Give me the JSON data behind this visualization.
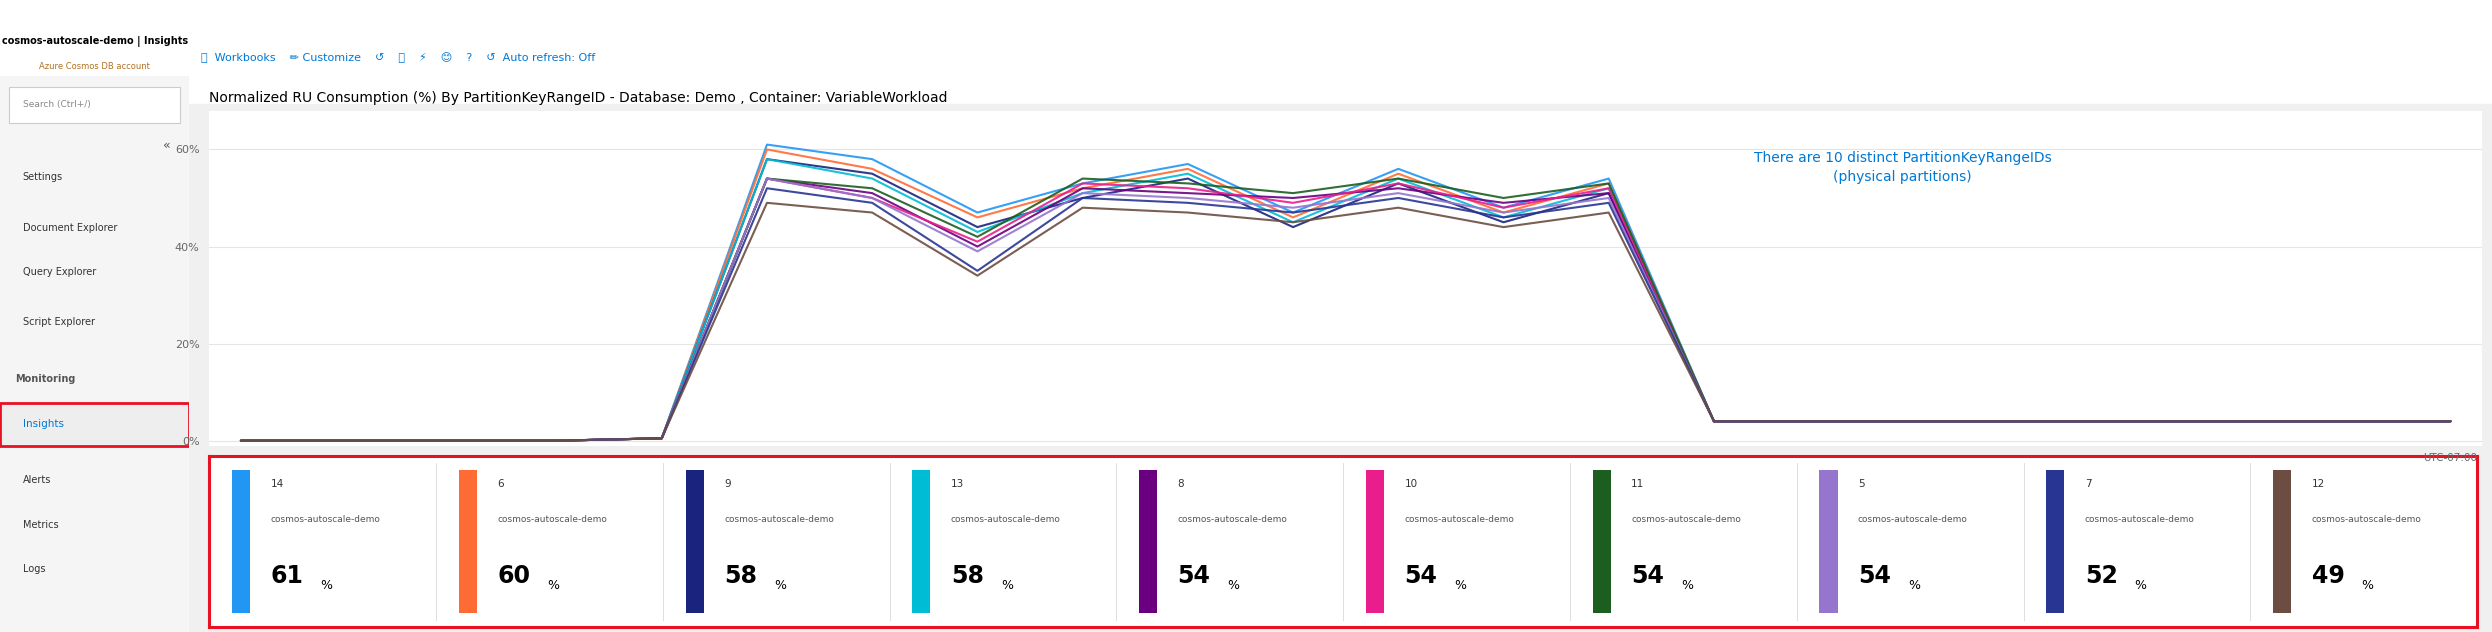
{
  "title": "Normalized RU Consumption (%) By PartitionKeyRangeID - Database: Demo , Container: VariableWorkload",
  "annotation_line1": "There are 10 distinct PartitionKeyRangeIDs",
  "annotation_line2": "(physical partitions)",
  "annotation_color": "#0078d4",
  "yticks": [
    0,
    20,
    40,
    60
  ],
  "ytick_labels": [
    "0%",
    "20%",
    "40%",
    "60%"
  ],
  "ylim": [
    -1,
    68
  ],
  "grid_color": "#e5e5e5",
  "title_fontsize": 10,
  "utc_label": "UTC-07:00",
  "border_color": "#e81123",
  "left_panel_bg": "#f5f5f5",
  "main_bg": "#ffffff",
  "fig_bg": "#f0f0f0",
  "lw": 0.076,
  "partitions": [
    {
      "id": "14",
      "name": "cosmos-autoscale-demo",
      "pct": "61",
      "color": "#2196F3"
    },
    {
      "id": "6",
      "name": "cosmos-autoscale-demo",
      "pct": "60",
      "color": "#FF6B35"
    },
    {
      "id": "9",
      "name": "cosmos-autoscale-demo",
      "pct": "58",
      "color": "#1a237e"
    },
    {
      "id": "13",
      "name": "cosmos-autoscale-demo",
      "pct": "58",
      "color": "#00BCD4"
    },
    {
      "id": "8",
      "name": "cosmos-autoscale-demo",
      "pct": "54",
      "color": "#6A0080"
    },
    {
      "id": "10",
      "name": "cosmos-autoscale-demo",
      "pct": "54",
      "color": "#E91E8C"
    },
    {
      "id": "11",
      "name": "cosmos-autoscale-demo",
      "pct": "54",
      "color": "#1B5E20"
    },
    {
      "id": "5",
      "name": "cosmos-autoscale-demo",
      "pct": "54",
      "color": "#9575CD"
    },
    {
      "id": "7",
      "name": "cosmos-autoscale-demo",
      "pct": "52",
      "color": "#283593"
    },
    {
      "id": "12",
      "name": "cosmos-autoscale-demo",
      "pct": "49",
      "color": "#6D4C41"
    }
  ],
  "line_series": [
    [
      0,
      0,
      0,
      0,
      0.5,
      61,
      58,
      47,
      53,
      57,
      47,
      56,
      48,
      54,
      4,
      4,
      4,
      4,
      4,
      4,
      4,
      4
    ],
    [
      0,
      0,
      0,
      0,
      0.5,
      60,
      56,
      46,
      52,
      56,
      46,
      55,
      47,
      53,
      4,
      4,
      4,
      4,
      4,
      4,
      4,
      4
    ],
    [
      0,
      0,
      0,
      0,
      0.5,
      58,
      55,
      44,
      50,
      54,
      44,
      53,
      45,
      51,
      4,
      4,
      4,
      4,
      4,
      4,
      4,
      4
    ],
    [
      0,
      0,
      0,
      0,
      0.5,
      58,
      54,
      43,
      51,
      55,
      45,
      54,
      46,
      52,
      4,
      4,
      4,
      4,
      4,
      4,
      4,
      4
    ],
    [
      0,
      0,
      0,
      0,
      0.5,
      54,
      51,
      40,
      52,
      51,
      50,
      52,
      49,
      51,
      4,
      4,
      4,
      4,
      4,
      4,
      4,
      4
    ],
    [
      0,
      0,
      0,
      0,
      0.5,
      54,
      50,
      41,
      53,
      52,
      49,
      53,
      48,
      52,
      4,
      4,
      4,
      4,
      4,
      4,
      4,
      4
    ],
    [
      0,
      0,
      0,
      0,
      0.5,
      54,
      52,
      42,
      54,
      53,
      51,
      54,
      50,
      53,
      4,
      4,
      4,
      4,
      4,
      4,
      4,
      4
    ],
    [
      0,
      0,
      0,
      0,
      0.5,
      54,
      50,
      39,
      51,
      50,
      48,
      51,
      47,
      50,
      4,
      4,
      4,
      4,
      4,
      4,
      4,
      4
    ],
    [
      0,
      0,
      0,
      0,
      0.5,
      52,
      49,
      35,
      50,
      49,
      47,
      50,
      46,
      49,
      4,
      4,
      4,
      4,
      4,
      4,
      4,
      4
    ],
    [
      0,
      0,
      0,
      0,
      0.5,
      49,
      47,
      34,
      48,
      47,
      45,
      48,
      44,
      47,
      4,
      4,
      4,
      4,
      4,
      4,
      4,
      4
    ]
  ]
}
